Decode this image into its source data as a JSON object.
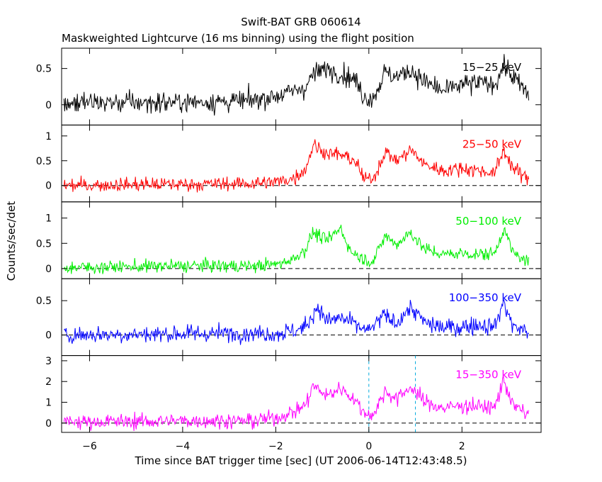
{
  "chart_data": {
    "type": "line",
    "title": "Swift-BAT GRB 060614",
    "subtitle": "Maskweighted Lightcurve (16 ms binning) using the flight position",
    "xlabel": "Time since BAT trigger time [sec] (UT 2006-06-14T12:43:48.5)",
    "ylabel": "Counts/sec/det",
    "xlim": [
      -6.6,
      3.7
    ],
    "x_ticks": [
      -6,
      -4,
      -2,
      0,
      2
    ],
    "bin_width_sec": 0.016,
    "grid": false,
    "reference_lines": [
      {
        "x": 0,
        "color": "#00aadd",
        "style": "dashed",
        "panels": [
          4
        ]
      },
      {
        "x": 1,
        "color": "#00aadd",
        "style": "dashed",
        "panels": [
          4
        ]
      }
    ],
    "panels": [
      {
        "label": "15−25 keV",
        "color": "#000000",
        "ylim": [
          -0.28,
          0.78
        ],
        "yticks": [
          0,
          0.5
        ],
        "ytick_labels": [
          "0",
          "0.5"
        ],
        "zero_dashed": false,
        "envelope": [
          [
            -6.55,
            0.03
          ],
          [
            -5.0,
            0.03
          ],
          [
            -3.5,
            0.04
          ],
          [
            -2.6,
            0.05
          ],
          [
            -2.2,
            0.1
          ],
          [
            -1.8,
            0.15
          ],
          [
            -1.35,
            0.25
          ],
          [
            -1.2,
            0.42
          ],
          [
            -0.9,
            0.5
          ],
          [
            -0.6,
            0.43
          ],
          [
            -0.3,
            0.35
          ],
          [
            -0.1,
            0.1
          ],
          [
            0.1,
            0.1
          ],
          [
            0.35,
            0.45
          ],
          [
            0.6,
            0.38
          ],
          [
            0.9,
            0.48
          ],
          [
            1.2,
            0.32
          ],
          [
            1.6,
            0.18
          ],
          [
            2.0,
            0.28
          ],
          [
            2.4,
            0.3
          ],
          [
            2.7,
            0.28
          ],
          [
            2.9,
            0.55
          ],
          [
            3.1,
            0.38
          ],
          [
            3.45,
            0.12
          ]
        ],
        "noise": 0.1
      },
      {
        "label": "25−50 keV",
        "color": "#ff0000",
        "ylim": [
          -0.33,
          1.22
        ],
        "yticks": [
          0,
          0.5,
          1
        ],
        "ytick_labels": [
          "0",
          "0.5",
          "1"
        ],
        "zero_dashed": true,
        "envelope": [
          [
            -6.55,
            0.0
          ],
          [
            -5.0,
            0.02
          ],
          [
            -3.5,
            0.03
          ],
          [
            -2.6,
            0.04
          ],
          [
            -2.0,
            0.07
          ],
          [
            -1.6,
            0.15
          ],
          [
            -1.35,
            0.35
          ],
          [
            -1.2,
            0.82
          ],
          [
            -0.9,
            0.65
          ],
          [
            -0.6,
            0.62
          ],
          [
            -0.3,
            0.5
          ],
          [
            -0.1,
            0.12
          ],
          [
            0.1,
            0.15
          ],
          [
            0.35,
            0.68
          ],
          [
            0.6,
            0.5
          ],
          [
            0.9,
            0.72
          ],
          [
            1.2,
            0.42
          ],
          [
            1.6,
            0.3
          ],
          [
            2.0,
            0.35
          ],
          [
            2.4,
            0.3
          ],
          [
            2.7,
            0.25
          ],
          [
            2.9,
            0.72
          ],
          [
            3.1,
            0.35
          ],
          [
            3.45,
            0.1
          ]
        ],
        "noise": 0.1
      },
      {
        "label": "50−100 keV",
        "color": "#00ee00",
        "ylim": [
          -0.2,
          1.32
        ],
        "yticks": [
          0,
          0.5,
          1
        ],
        "ytick_labels": [
          "0",
          "0.5",
          "1"
        ],
        "zero_dashed": true,
        "envelope": [
          [
            -6.55,
            0.02
          ],
          [
            -5.0,
            0.04
          ],
          [
            -3.5,
            0.06
          ],
          [
            -2.6,
            0.05
          ],
          [
            -2.0,
            0.08
          ],
          [
            -1.6,
            0.2
          ],
          [
            -1.35,
            0.4
          ],
          [
            -1.2,
            0.72
          ],
          [
            -0.9,
            0.55
          ],
          [
            -0.6,
            0.8
          ],
          [
            -0.4,
            0.35
          ],
          [
            -0.1,
            0.18
          ],
          [
            0.1,
            0.15
          ],
          [
            0.35,
            0.65
          ],
          [
            0.6,
            0.48
          ],
          [
            0.9,
            0.72
          ],
          [
            1.2,
            0.38
          ],
          [
            1.6,
            0.28
          ],
          [
            2.0,
            0.3
          ],
          [
            2.4,
            0.28
          ],
          [
            2.7,
            0.3
          ],
          [
            2.9,
            0.8
          ],
          [
            3.1,
            0.3
          ],
          [
            3.45,
            0.12
          ]
        ],
        "noise": 0.09
      },
      {
        "label": "100−350 keV",
        "color": "#0000ff",
        "ylim": [
          -0.3,
          0.82
        ],
        "yticks": [
          0,
          0.5
        ],
        "ytick_labels": [
          "0",
          "0.5"
        ],
        "zero_dashed": true,
        "envelope": [
          [
            -6.55,
            0.0
          ],
          [
            -5.0,
            0.01
          ],
          [
            -3.5,
            0.02
          ],
          [
            -2.6,
            0.03
          ],
          [
            -2.0,
            0.02
          ],
          [
            -1.6,
            0.06
          ],
          [
            -1.35,
            0.12
          ],
          [
            -1.1,
            0.42
          ],
          [
            -0.9,
            0.2
          ],
          [
            -0.6,
            0.25
          ],
          [
            -0.3,
            0.15
          ],
          [
            0.0,
            0.05
          ],
          [
            0.3,
            0.28
          ],
          [
            0.6,
            0.18
          ],
          [
            0.9,
            0.4
          ],
          [
            1.2,
            0.18
          ],
          [
            1.6,
            0.1
          ],
          [
            2.0,
            0.12
          ],
          [
            2.4,
            0.15
          ],
          [
            2.7,
            0.12
          ],
          [
            2.9,
            0.48
          ],
          [
            3.1,
            0.12
          ],
          [
            3.45,
            0.05
          ]
        ],
        "noise": 0.09
      },
      {
        "label": "15−350 keV",
        "color": "#ff00ff",
        "ylim": [
          -0.45,
          3.25
        ],
        "yticks": [
          0,
          1,
          2,
          3
        ],
        "ytick_labels": [
          "0",
          "1",
          "2",
          "3"
        ],
        "zero_dashed": true,
        "envelope": [
          [
            -6.55,
            0.05
          ],
          [
            -5.0,
            0.08
          ],
          [
            -3.5,
            0.12
          ],
          [
            -2.6,
            0.1
          ],
          [
            -2.0,
            0.25
          ],
          [
            -1.6,
            0.55
          ],
          [
            -1.35,
            0.9
          ],
          [
            -1.2,
            1.8
          ],
          [
            -0.9,
            1.3
          ],
          [
            -0.6,
            1.7
          ],
          [
            -0.3,
            1.1
          ],
          [
            -0.1,
            0.5
          ],
          [
            0.1,
            0.4
          ],
          [
            0.35,
            1.55
          ],
          [
            0.6,
            1.15
          ],
          [
            0.9,
            1.75
          ],
          [
            1.2,
            1.0
          ],
          [
            1.6,
            0.72
          ],
          [
            2.0,
            0.85
          ],
          [
            2.4,
            0.8
          ],
          [
            2.7,
            0.72
          ],
          [
            2.9,
            2.1
          ],
          [
            3.1,
            0.85
          ],
          [
            3.45,
            0.35
          ]
        ],
        "noise": 0.26
      }
    ]
  }
}
